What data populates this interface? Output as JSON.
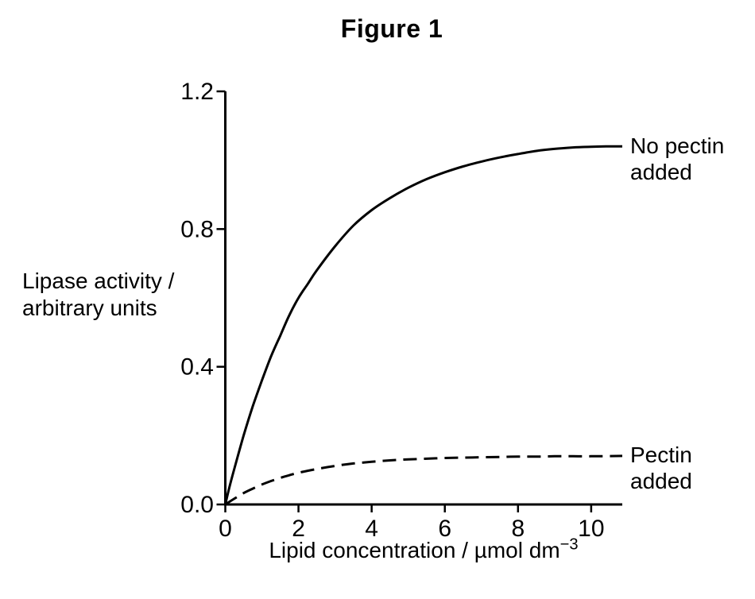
{
  "chart_data": {
    "type": "line",
    "title": "Figure 1",
    "xlabel": "Lipid concentration / µmol dm−3",
    "xlabel_base": "Lipid concentration / µmol dm",
    "xlabel_sup": "−3",
    "ylabel": "Lipase activity / arbitrary units",
    "ylabel_lines": [
      "Lipase activity /",
      "arbitrary units"
    ],
    "xlim": [
      0,
      10.85
    ],
    "ylim": [
      0,
      1.2
    ],
    "x_ticks": [
      {
        "value": 0,
        "label": "0"
      },
      {
        "value": 2,
        "label": "2"
      },
      {
        "value": 4,
        "label": "4"
      },
      {
        "value": 6,
        "label": "6"
      },
      {
        "value": 8,
        "label": "8"
      },
      {
        "value": 10,
        "label": "10"
      }
    ],
    "y_ticks": [
      {
        "value": 0.0,
        "label": "0.0"
      },
      {
        "value": 0.4,
        "label": "0.4"
      },
      {
        "value": 0.8,
        "label": "0.8"
      },
      {
        "value": 1.2,
        "label": "1.2"
      }
    ],
    "grid": false,
    "legend_position": "right-of-curves",
    "series": [
      {
        "name": "No pectin added",
        "label_lines": [
          "No pectin",
          "added"
        ],
        "style": "solid",
        "color": "#000000",
        "plateau": 1.04,
        "points": [
          [
            0,
            0
          ],
          [
            0.1,
            0.045
          ],
          [
            0.25,
            0.105
          ],
          [
            0.5,
            0.2
          ],
          [
            0.75,
            0.285
          ],
          [
            1,
            0.36
          ],
          [
            1.25,
            0.43
          ],
          [
            1.5,
            0.49
          ],
          [
            1.75,
            0.55
          ],
          [
            2,
            0.6
          ],
          [
            2.25,
            0.64
          ],
          [
            2.5,
            0.68
          ],
          [
            3,
            0.75
          ],
          [
            3.5,
            0.81
          ],
          [
            4,
            0.855
          ],
          [
            4.5,
            0.89
          ],
          [
            5,
            0.92
          ],
          [
            5.5,
            0.945
          ],
          [
            6,
            0.965
          ],
          [
            6.5,
            0.982
          ],
          [
            7,
            0.996
          ],
          [
            7.5,
            1.008
          ],
          [
            8,
            1.018
          ],
          [
            8.5,
            1.027
          ],
          [
            9,
            1.033
          ],
          [
            9.5,
            1.037
          ],
          [
            10,
            1.039
          ],
          [
            10.4,
            1.04
          ],
          [
            10.85,
            1.04
          ]
        ]
      },
      {
        "name": "Pectin added",
        "label_lines": [
          "Pectin",
          "added"
        ],
        "style": "dashed",
        "color": "#000000",
        "plateau": 0.14,
        "points": [
          [
            0,
            0
          ],
          [
            0.1,
            0.007
          ],
          [
            0.25,
            0.017
          ],
          [
            0.5,
            0.033
          ],
          [
            0.75,
            0.046
          ],
          [
            1,
            0.058
          ],
          [
            1.25,
            0.068
          ],
          [
            1.5,
            0.077
          ],
          [
            1.75,
            0.085
          ],
          [
            2,
            0.092
          ],
          [
            2.5,
            0.103
          ],
          [
            3,
            0.112
          ],
          [
            3.5,
            0.119
          ],
          [
            4,
            0.124
          ],
          [
            4.5,
            0.128
          ],
          [
            5,
            0.131
          ],
          [
            5.5,
            0.133
          ],
          [
            6,
            0.135
          ],
          [
            6.5,
            0.136
          ],
          [
            7,
            0.137
          ],
          [
            7.5,
            0.138
          ],
          [
            8,
            0.139
          ],
          [
            8.5,
            0.139
          ],
          [
            9,
            0.14
          ],
          [
            9.5,
            0.14
          ],
          [
            10,
            0.14
          ],
          [
            10.85,
            0.141
          ]
        ]
      }
    ]
  },
  "colors": {
    "background": "#ffffff",
    "axis": "#000000",
    "text": "#000000"
  }
}
